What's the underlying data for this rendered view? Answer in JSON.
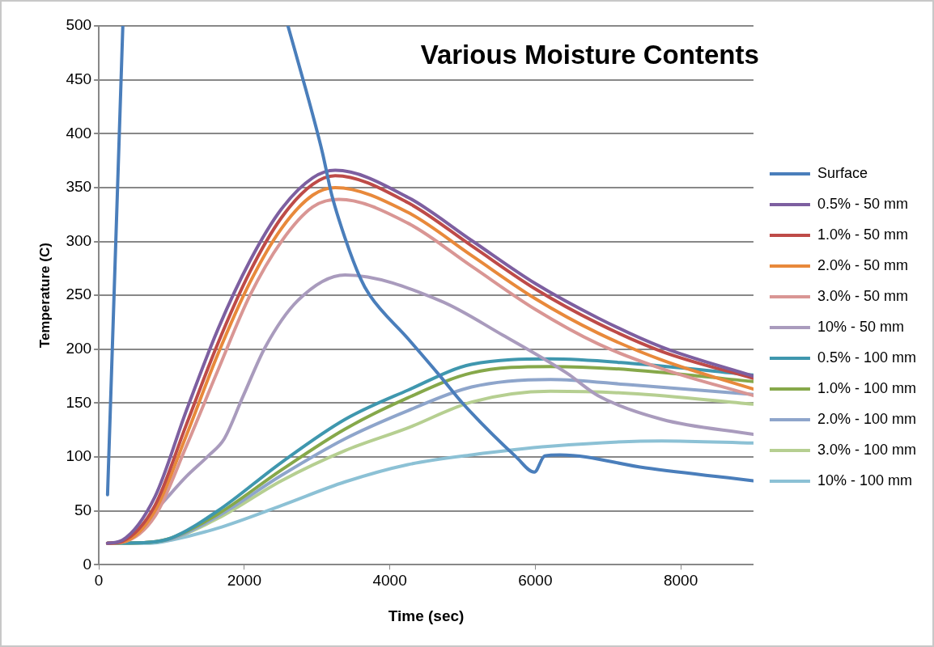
{
  "chart_data": {
    "type": "line",
    "title": "Various Moisture Contents",
    "xlabel": "Time (sec)",
    "ylabel": "Temperature (C)",
    "xlim": [
      0,
      9000
    ],
    "xticks": [
      0,
      2000,
      4000,
      6000,
      8000
    ],
    "ylim": [
      0,
      500
    ],
    "yticks": [
      0,
      50,
      100,
      150,
      200,
      250,
      300,
      350,
      400,
      450,
      500
    ],
    "grid": "y",
    "legend": "right",
    "marker": "none",
    "line_style": "solid",
    "series": [
      {
        "name": "Surface",
        "color": "#4a7ebb",
        "x": [
          120,
          330,
          null,
          2600,
          2850,
          3072,
          3203,
          3386,
          3595,
          3725,
          4248,
          4693,
          5000,
          5739,
          5987,
          6130,
          6340,
          7516,
          9000
        ],
        "values": [
          65,
          500,
          null,
          500,
          440,
          383,
          343,
          303,
          266,
          250,
          210,
          175,
          150,
          100,
          86,
          101,
          102,
          90,
          78
        ]
      },
      {
        "name": "0.5% - 50 mm",
        "color": "#7d5fa0",
        "x": [
          120,
          327,
          771,
          1203,
          1634,
          2078,
          2510,
          2941,
          3250,
          4248,
          5124,
          6000,
          6863,
          7739,
          9000
        ],
        "values": [
          20,
          23,
          63,
          143,
          218,
          282,
          330,
          359,
          366,
          341,
          301,
          261,
          229,
          202,
          175
        ]
      },
      {
        "name": "1.0% - 50 mm",
        "color": "#be4b48",
        "x": [
          120,
          327,
          771,
          1203,
          1634,
          2078,
          2510,
          2941,
          3250,
          4248,
          5124,
          6000,
          6863,
          7739,
          9000
        ],
        "values": [
          20,
          22,
          55,
          130,
          205,
          272,
          322,
          353,
          361,
          336,
          296,
          256,
          224,
          198,
          173
        ]
      },
      {
        "name": "2.0% - 50 mm",
        "color": "#e8893b",
        "x": [
          120,
          327,
          771,
          1203,
          1634,
          2078,
          2510,
          2941,
          3250,
          4248,
          5124,
          6000,
          6863,
          7739,
          9000
        ],
        "values": [
          20,
          21,
          50,
          120,
          195,
          262,
          312,
          343,
          350,
          327,
          287,
          247,
          215,
          190,
          163
        ]
      },
      {
        "name": "3.0% - 50 mm",
        "color": "#d99694",
        "x": [
          120,
          327,
          771,
          1203,
          1634,
          2078,
          2510,
          2941,
          3300,
          4248,
          5124,
          6000,
          6863,
          7739,
          9000
        ],
        "values": [
          20,
          21,
          45,
          110,
          180,
          250,
          300,
          332,
          339,
          317,
          277,
          237,
          205,
          182,
          157
        ]
      },
      {
        "name": "10% - 50 mm",
        "color": "#a99bbd",
        "x": [
          120,
          327,
          771,
          1203,
          1503,
          1725,
          1987,
          2288,
          2732,
          3386,
          4693,
          5556,
          6431,
          6863,
          7739,
          9000
        ],
        "values": [
          20,
          22,
          50,
          82,
          101,
          117,
          157,
          202,
          245,
          269,
          245,
          213,
          178,
          157,
          135,
          121
        ]
      },
      {
        "name": "0.5% - 100 mm",
        "color": "#3f97ae",
        "x": [
          120,
          700,
          1000,
          1634,
          2510,
          3386,
          4248,
          5124,
          6209,
          7307,
          9000
        ],
        "values": [
          20,
          21,
          25,
          50,
          95,
          135,
          162,
          186,
          191,
          187,
          176
        ]
      },
      {
        "name": "1.0% - 100 mm",
        "color": "#86a84a",
        "x": [
          120,
          700,
          1000,
          1634,
          2510,
          3386,
          4248,
          5124,
          6209,
          7307,
          9000
        ],
        "values": [
          20,
          21,
          25,
          47,
          88,
          126,
          155,
          178,
          184,
          181,
          170
        ]
      },
      {
        "name": "2.0% - 100 mm",
        "color": "#8ea5cb",
        "x": [
          120,
          700,
          1000,
          1634,
          2510,
          3386,
          4248,
          5124,
          6209,
          7307,
          9000
        ],
        "values": [
          20,
          21,
          24,
          45,
          83,
          117,
          143,
          165,
          172,
          167,
          158
        ]
      },
      {
        "name": "3.0% - 100 mm",
        "color": "#b6cf91",
        "x": [
          120,
          700,
          1000,
          1634,
          2510,
          3386,
          4248,
          5124,
          6209,
          7307,
          9000
        ],
        "values": [
          20,
          21,
          24,
          43,
          78,
          106,
          127,
          151,
          161,
          159,
          149
        ]
      },
      {
        "name": "10% - 100 mm",
        "color": "#8cc1d5",
        "x": [
          120,
          700,
          1000,
          1634,
          2510,
          3386,
          4248,
          5124,
          6209,
          7739,
          9000
        ],
        "values": [
          20,
          20,
          23,
          34,
          55,
          77,
          93,
          102,
          110,
          115,
          113
        ]
      }
    ]
  }
}
